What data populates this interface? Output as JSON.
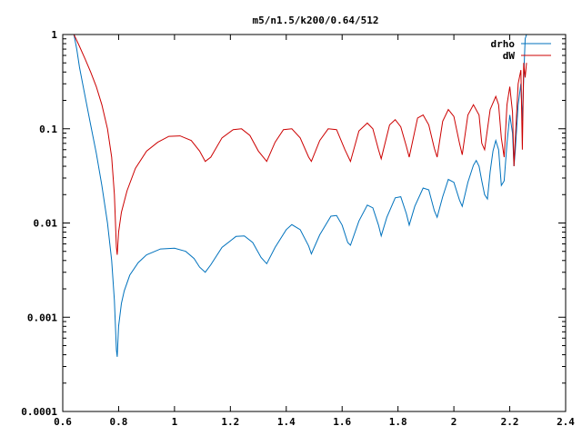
{
  "chart_data": {
    "type": "line",
    "title": "m5/n1.5/k200/0.64/512",
    "xlabel": "",
    "ylabel": "",
    "xlim": [
      0.6,
      2.4
    ],
    "ylim": [
      0.0001,
      1
    ],
    "yscale": "log",
    "grid": false,
    "legend": "top-right",
    "x_ticks": [
      0.6,
      0.8,
      1,
      1.2,
      1.4,
      1.6,
      1.8,
      2,
      2.2,
      2.4
    ],
    "x_tick_labels": [
      "0.6",
      "0.8",
      "1",
      "1.2",
      "1.4",
      "1.6",
      "1.8",
      "2",
      "2.2",
      "2.4"
    ],
    "y_ticks": [
      0.0001,
      0.001,
      0.01,
      0.1,
      1
    ],
    "y_tick_labels": [
      "0.0001",
      "0.001",
      "0.01",
      "0.1",
      "1"
    ],
    "series": [
      {
        "name": "drho",
        "color": "#0072bd",
        "points": [
          [
            0.64,
            1.0
          ],
          [
            0.65,
            0.7
          ],
          [
            0.66,
            0.45
          ],
          [
            0.68,
            0.22
          ],
          [
            0.7,
            0.11
          ],
          [
            0.72,
            0.055
          ],
          [
            0.74,
            0.025
          ],
          [
            0.76,
            0.01
          ],
          [
            0.775,
            0.004
          ],
          [
            0.785,
            0.0015
          ],
          [
            0.792,
            0.00045
          ],
          [
            0.795,
            0.00038
          ],
          [
            0.8,
            0.0008
          ],
          [
            0.81,
            0.0014
          ],
          [
            0.82,
            0.0019
          ],
          [
            0.84,
            0.0028
          ],
          [
            0.87,
            0.0038
          ],
          [
            0.9,
            0.0046
          ],
          [
            0.95,
            0.0053
          ],
          [
            1.0,
            0.0054
          ],
          [
            1.04,
            0.005
          ],
          [
            1.07,
            0.0042
          ],
          [
            1.09,
            0.0034
          ],
          [
            1.11,
            0.003
          ],
          [
            1.13,
            0.0036
          ],
          [
            1.17,
            0.0055
          ],
          [
            1.22,
            0.0072
          ],
          [
            1.25,
            0.0073
          ],
          [
            1.28,
            0.0062
          ],
          [
            1.31,
            0.0043
          ],
          [
            1.33,
            0.0037
          ],
          [
            1.36,
            0.0055
          ],
          [
            1.4,
            0.0085
          ],
          [
            1.42,
            0.0096
          ],
          [
            1.45,
            0.0085
          ],
          [
            1.48,
            0.0057
          ],
          [
            1.49,
            0.0047
          ],
          [
            1.52,
            0.0075
          ],
          [
            1.56,
            0.0118
          ],
          [
            1.58,
            0.012
          ],
          [
            1.6,
            0.0095
          ],
          [
            1.62,
            0.0062
          ],
          [
            1.63,
            0.0058
          ],
          [
            1.66,
            0.0105
          ],
          [
            1.69,
            0.0155
          ],
          [
            1.71,
            0.0145
          ],
          [
            1.73,
            0.0095
          ],
          [
            1.74,
            0.0073
          ],
          [
            1.76,
            0.0115
          ],
          [
            1.79,
            0.0185
          ],
          [
            1.81,
            0.019
          ],
          [
            1.83,
            0.0125
          ],
          [
            1.84,
            0.0095
          ],
          [
            1.86,
            0.015
          ],
          [
            1.89,
            0.0235
          ],
          [
            1.91,
            0.0225
          ],
          [
            1.93,
            0.0135
          ],
          [
            1.94,
            0.0115
          ],
          [
            1.96,
            0.019
          ],
          [
            1.98,
            0.029
          ],
          [
            2.0,
            0.027
          ],
          [
            2.02,
            0.0175
          ],
          [
            2.03,
            0.015
          ],
          [
            2.05,
            0.027
          ],
          [
            2.07,
            0.041
          ],
          [
            2.08,
            0.046
          ],
          [
            2.09,
            0.04
          ],
          [
            2.1,
            0.028
          ],
          [
            2.11,
            0.02
          ],
          [
            2.12,
            0.018
          ],
          [
            2.13,
            0.035
          ],
          [
            2.14,
            0.058
          ],
          [
            2.15,
            0.075
          ],
          [
            2.16,
            0.06
          ],
          [
            2.17,
            0.025
          ],
          [
            2.18,
            0.028
          ],
          [
            2.19,
            0.07
          ],
          [
            2.2,
            0.14
          ],
          [
            2.21,
            0.09
          ],
          [
            2.215,
            0.04
          ],
          [
            2.22,
            0.06
          ],
          [
            2.23,
            0.18
          ],
          [
            2.24,
            0.3
          ],
          [
            2.245,
            0.12
          ],
          [
            2.25,
            0.35
          ],
          [
            2.255,
            0.9
          ],
          [
            2.26,
            1.0
          ]
        ]
      },
      {
        "name": "dW",
        "color": "#cc0000",
        "points": [
          [
            0.64,
            1.0
          ],
          [
            0.66,
            0.75
          ],
          [
            0.68,
            0.55
          ],
          [
            0.7,
            0.4
          ],
          [
            0.72,
            0.28
          ],
          [
            0.74,
            0.18
          ],
          [
            0.76,
            0.1
          ],
          [
            0.775,
            0.05
          ],
          [
            0.785,
            0.02
          ],
          [
            0.792,
            0.0055
          ],
          [
            0.795,
            0.0046
          ],
          [
            0.8,
            0.008
          ],
          [
            0.81,
            0.013
          ],
          [
            0.83,
            0.022
          ],
          [
            0.86,
            0.038
          ],
          [
            0.9,
            0.058
          ],
          [
            0.94,
            0.072
          ],
          [
            0.98,
            0.083
          ],
          [
            1.02,
            0.084
          ],
          [
            1.06,
            0.075
          ],
          [
            1.09,
            0.058
          ],
          [
            1.11,
            0.045
          ],
          [
            1.13,
            0.05
          ],
          [
            1.17,
            0.08
          ],
          [
            1.21,
            0.098
          ],
          [
            1.24,
            0.1
          ],
          [
            1.27,
            0.085
          ],
          [
            1.3,
            0.058
          ],
          [
            1.33,
            0.045
          ],
          [
            1.36,
            0.072
          ],
          [
            1.39,
            0.098
          ],
          [
            1.42,
            0.1
          ],
          [
            1.45,
            0.08
          ],
          [
            1.48,
            0.05
          ],
          [
            1.49,
            0.045
          ],
          [
            1.52,
            0.075
          ],
          [
            1.55,
            0.1
          ],
          [
            1.58,
            0.098
          ],
          [
            1.61,
            0.06
          ],
          [
            1.63,
            0.045
          ],
          [
            1.66,
            0.095
          ],
          [
            1.69,
            0.115
          ],
          [
            1.71,
            0.1
          ],
          [
            1.73,
            0.06
          ],
          [
            1.74,
            0.048
          ],
          [
            1.77,
            0.11
          ],
          [
            1.79,
            0.125
          ],
          [
            1.81,
            0.105
          ],
          [
            1.83,
            0.065
          ],
          [
            1.84,
            0.05
          ],
          [
            1.87,
            0.13
          ],
          [
            1.89,
            0.14
          ],
          [
            1.91,
            0.11
          ],
          [
            1.93,
            0.062
          ],
          [
            1.94,
            0.05
          ],
          [
            1.96,
            0.12
          ],
          [
            1.98,
            0.16
          ],
          [
            2.0,
            0.135
          ],
          [
            2.02,
            0.07
          ],
          [
            2.03,
            0.053
          ],
          [
            2.05,
            0.14
          ],
          [
            2.07,
            0.18
          ],
          [
            2.09,
            0.14
          ],
          [
            2.1,
            0.07
          ],
          [
            2.11,
            0.06
          ],
          [
            2.13,
            0.16
          ],
          [
            2.15,
            0.22
          ],
          [
            2.16,
            0.18
          ],
          [
            2.17,
            0.08
          ],
          [
            2.18,
            0.05
          ],
          [
            2.19,
            0.18
          ],
          [
            2.2,
            0.28
          ],
          [
            2.21,
            0.15
          ],
          [
            2.215,
            0.04
          ],
          [
            2.22,
            0.08
          ],
          [
            2.23,
            0.3
          ],
          [
            2.24,
            0.42
          ],
          [
            2.245,
            0.06
          ],
          [
            2.25,
            0.5
          ],
          [
            2.255,
            0.35
          ],
          [
            2.26,
            0.5
          ]
        ]
      }
    ]
  }
}
